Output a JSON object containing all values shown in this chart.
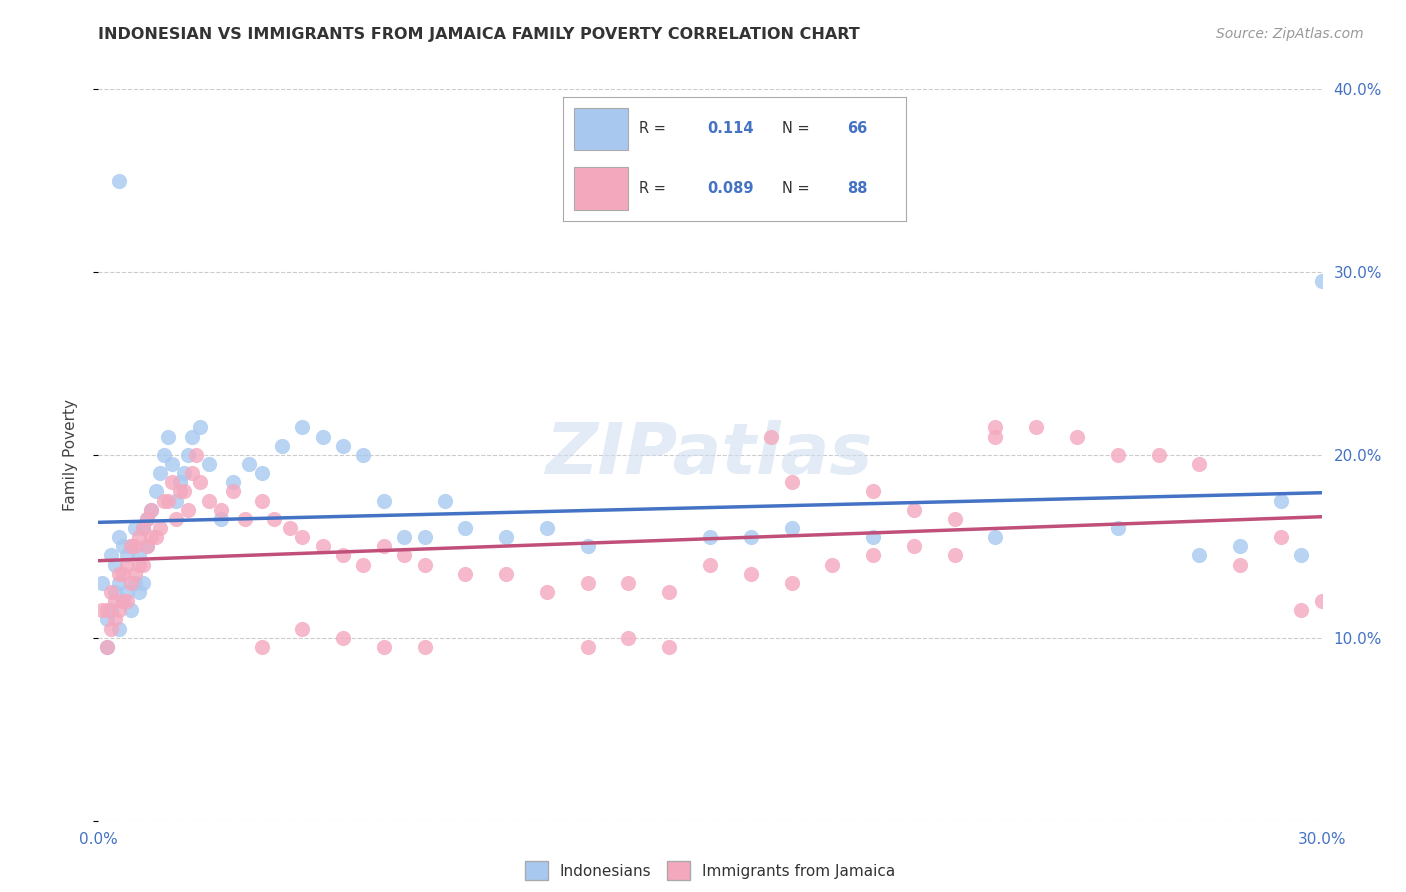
{
  "title": "INDONESIAN VS IMMIGRANTS FROM JAMAICA FAMILY POVERTY CORRELATION CHART",
  "source": "Source: ZipAtlas.com",
  "ylabel": "Family Poverty",
  "xlim": [
    0.0,
    0.3
  ],
  "ylim": [
    0.0,
    0.4
  ],
  "blue_R": "0.114",
  "blue_N": "66",
  "pink_R": "0.089",
  "pink_N": "88",
  "blue_color": "#A8C8F0",
  "pink_color": "#F4A8BE",
  "blue_line_color": "#4472C4",
  "pink_line_color": "#C0507A",
  "legend_label_blue": "Indonesians",
  "legend_label_pink": "Immigrants from Jamaica",
  "watermark": "ZIPatlas",
  "blue_points_x": [
    0.001,
    0.002,
    0.002,
    0.003,
    0.003,
    0.004,
    0.004,
    0.005,
    0.005,
    0.005,
    0.006,
    0.006,
    0.007,
    0.007,
    0.008,
    0.008,
    0.009,
    0.009,
    0.01,
    0.01,
    0.011,
    0.011,
    0.012,
    0.012,
    0.013,
    0.014,
    0.015,
    0.016,
    0.017,
    0.018,
    0.019,
    0.02,
    0.021,
    0.022,
    0.023,
    0.025,
    0.027,
    0.03,
    0.033,
    0.037,
    0.04,
    0.045,
    0.05,
    0.055,
    0.06,
    0.065,
    0.07,
    0.075,
    0.08,
    0.085,
    0.09,
    0.1,
    0.11,
    0.12,
    0.15,
    0.16,
    0.17,
    0.19,
    0.22,
    0.25,
    0.27,
    0.28,
    0.29,
    0.295,
    0.3,
    0.005
  ],
  "blue_points_y": [
    0.13,
    0.095,
    0.11,
    0.115,
    0.145,
    0.14,
    0.125,
    0.13,
    0.155,
    0.105,
    0.15,
    0.12,
    0.145,
    0.125,
    0.15,
    0.115,
    0.16,
    0.13,
    0.145,
    0.125,
    0.16,
    0.13,
    0.165,
    0.15,
    0.17,
    0.18,
    0.19,
    0.2,
    0.21,
    0.195,
    0.175,
    0.185,
    0.19,
    0.2,
    0.21,
    0.215,
    0.195,
    0.165,
    0.185,
    0.195,
    0.19,
    0.205,
    0.215,
    0.21,
    0.205,
    0.2,
    0.175,
    0.155,
    0.155,
    0.175,
    0.16,
    0.155,
    0.16,
    0.15,
    0.155,
    0.155,
    0.16,
    0.155,
    0.155,
    0.16,
    0.145,
    0.15,
    0.175,
    0.145,
    0.295,
    0.35
  ],
  "pink_points_x": [
    0.001,
    0.002,
    0.002,
    0.003,
    0.003,
    0.004,
    0.004,
    0.005,
    0.005,
    0.006,
    0.006,
    0.007,
    0.007,
    0.008,
    0.008,
    0.009,
    0.009,
    0.01,
    0.01,
    0.011,
    0.011,
    0.012,
    0.012,
    0.013,
    0.013,
    0.014,
    0.015,
    0.016,
    0.017,
    0.018,
    0.019,
    0.02,
    0.021,
    0.022,
    0.023,
    0.024,
    0.025,
    0.027,
    0.03,
    0.033,
    0.036,
    0.04,
    0.043,
    0.047,
    0.05,
    0.055,
    0.06,
    0.065,
    0.07,
    0.075,
    0.08,
    0.09,
    0.1,
    0.11,
    0.12,
    0.13,
    0.14,
    0.15,
    0.16,
    0.17,
    0.18,
    0.19,
    0.2,
    0.21,
    0.22,
    0.23,
    0.24,
    0.25,
    0.26,
    0.27,
    0.28,
    0.29,
    0.295,
    0.3,
    0.17,
    0.19,
    0.2,
    0.21,
    0.22,
    0.165,
    0.04,
    0.05,
    0.06,
    0.07,
    0.08,
    0.12,
    0.13,
    0.14
  ],
  "pink_points_y": [
    0.115,
    0.095,
    0.115,
    0.105,
    0.125,
    0.11,
    0.12,
    0.115,
    0.135,
    0.12,
    0.135,
    0.12,
    0.14,
    0.13,
    0.15,
    0.135,
    0.15,
    0.14,
    0.155,
    0.14,
    0.16,
    0.15,
    0.165,
    0.155,
    0.17,
    0.155,
    0.16,
    0.175,
    0.175,
    0.185,
    0.165,
    0.18,
    0.18,
    0.17,
    0.19,
    0.2,
    0.185,
    0.175,
    0.17,
    0.18,
    0.165,
    0.175,
    0.165,
    0.16,
    0.155,
    0.15,
    0.145,
    0.14,
    0.15,
    0.145,
    0.14,
    0.135,
    0.135,
    0.125,
    0.13,
    0.13,
    0.125,
    0.14,
    0.135,
    0.13,
    0.14,
    0.145,
    0.15,
    0.145,
    0.215,
    0.215,
    0.21,
    0.2,
    0.2,
    0.195,
    0.14,
    0.155,
    0.115,
    0.12,
    0.185,
    0.18,
    0.17,
    0.165,
    0.21,
    0.21,
    0.095,
    0.105,
    0.1,
    0.095,
    0.095,
    0.095,
    0.1,
    0.095
  ]
}
